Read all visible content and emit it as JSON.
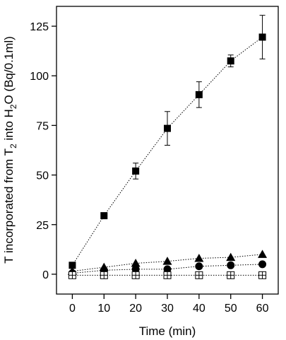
{
  "chart_data": {
    "type": "scatter",
    "title": "",
    "xlabel": "Time (min)",
    "ylabel": {
      "part1": "T incorporated from T",
      "sub1": "2",
      "part2": " into H",
      "sub2": "2",
      "part3": "O (Bq/0.1ml)"
    },
    "xlim": [
      -5,
      65
    ],
    "ylim": [
      -10,
      135
    ],
    "xticks": [
      0,
      10,
      20,
      30,
      40,
      50,
      60
    ],
    "yticks": [
      0,
      25,
      50,
      75,
      100,
      125
    ],
    "grid": false,
    "legend": "none",
    "series": [
      {
        "marker": "filled-square",
        "x": [
          0,
          10,
          20,
          30,
          40,
          50,
          60
        ],
        "y": [
          4.5,
          29.5,
          52,
          73.5,
          90.5,
          107.5,
          119.5
        ],
        "err": [
          0,
          0,
          4,
          8.5,
          6.5,
          3,
          11
        ],
        "line": "dotted",
        "color": "#000000"
      },
      {
        "marker": "filled-triangle",
        "x": [
          0,
          10,
          20,
          30,
          40,
          50,
          60
        ],
        "y": [
          1.5,
          3.5,
          5.5,
          6.5,
          8,
          8.5,
          10
        ],
        "err": [
          0,
          0,
          0,
          0,
          0,
          0,
          0
        ],
        "line": "dotted",
        "color": "#000000"
      },
      {
        "marker": "filled-circle",
        "x": [
          0,
          10,
          20,
          30,
          40,
          50,
          60
        ],
        "y": [
          0.5,
          2,
          2.5,
          2.5,
          4,
          4.5,
          5
        ],
        "err": [
          0,
          0,
          0,
          0,
          0,
          0,
          0
        ],
        "line": "dotted",
        "color": "#000000"
      },
      {
        "marker": "open-square-cross",
        "x": [
          0,
          10,
          20,
          30,
          40,
          50,
          60
        ],
        "y": [
          -0.5,
          -0.5,
          -0.5,
          -0.5,
          -0.5,
          -0.5,
          -0.5
        ],
        "err": [
          0,
          0,
          0,
          0,
          0,
          0,
          0
        ],
        "line": "dotted",
        "color": "#000000"
      }
    ]
  }
}
